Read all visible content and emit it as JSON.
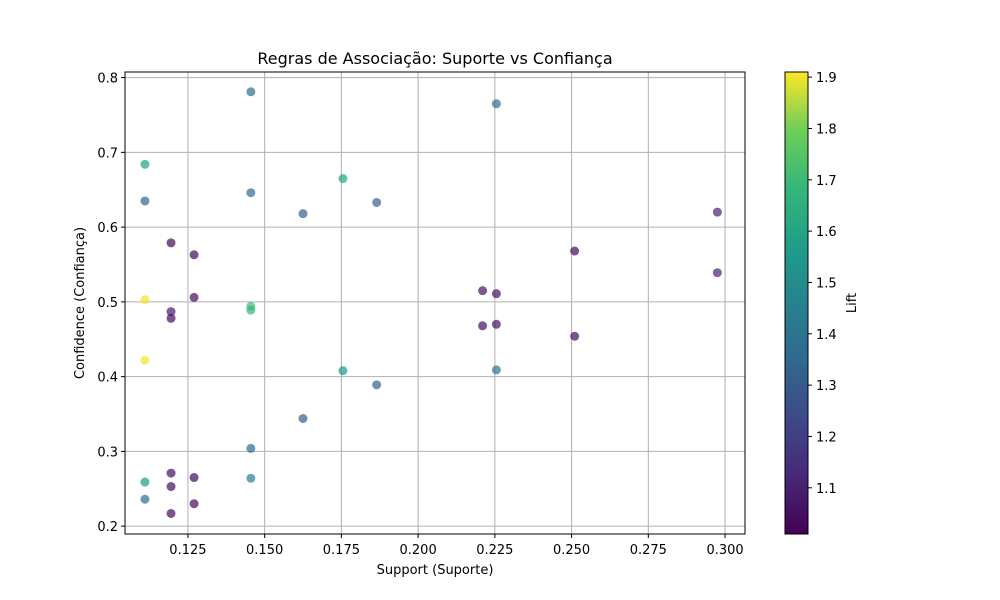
{
  "chart_data": {
    "type": "scatter",
    "title": "Regras de Associação: Suporte vs Confiança",
    "xlabel": "Support (Suporte)",
    "ylabel": "Confidence (Confiança)",
    "colorbar_label": "Lift",
    "xlim": [
      0.1045,
      0.3065
    ],
    "ylim": [
      0.1895,
      0.8075
    ],
    "xticks": [
      0.125,
      0.15,
      0.175,
      0.2,
      0.225,
      0.25,
      0.275,
      0.3
    ],
    "xtick_labels": [
      "0.125",
      "0.150",
      "0.175",
      "0.200",
      "0.225",
      "0.250",
      "0.275",
      "0.300"
    ],
    "yticks": [
      0.2,
      0.3,
      0.4,
      0.5,
      0.6,
      0.7,
      0.8
    ],
    "ytick_labels": [
      "0.2",
      "0.3",
      "0.4",
      "0.5",
      "0.6",
      "0.7",
      "0.8"
    ],
    "colorbar_range": [
      1.01,
      1.91
    ],
    "colorbar_ticks": [
      1.1,
      1.2,
      1.3,
      1.4,
      1.5,
      1.6,
      1.7,
      1.8,
      1.9
    ],
    "colorbar_tick_labels": [
      "1.1",
      "1.2",
      "1.3",
      "1.4",
      "1.5",
      "1.6",
      "1.7",
      "1.8",
      "1.9"
    ],
    "colormap": "viridis",
    "grid": true,
    "points": [
      {
        "x": 0.1455,
        "y": 0.781,
        "lift": 1.38
      },
      {
        "x": 0.2255,
        "y": 0.765,
        "lift": 1.38
      },
      {
        "x": 0.111,
        "y": 0.684,
        "lift": 1.58
      },
      {
        "x": 0.1755,
        "y": 0.665,
        "lift": 1.6
      },
      {
        "x": 0.1455,
        "y": 0.646,
        "lift": 1.35
      },
      {
        "x": 0.111,
        "y": 0.635,
        "lift": 1.33
      },
      {
        "x": 0.1865,
        "y": 0.633,
        "lift": 1.32
      },
      {
        "x": 0.1625,
        "y": 0.618,
        "lift": 1.31
      },
      {
        "x": 0.2975,
        "y": 0.62,
        "lift": 1.1
      },
      {
        "x": 0.1195,
        "y": 0.579,
        "lift": 1.03
      },
      {
        "x": 0.127,
        "y": 0.563,
        "lift": 1.03
      },
      {
        "x": 0.251,
        "y": 0.568,
        "lift": 1.04
      },
      {
        "x": 0.2975,
        "y": 0.539,
        "lift": 1.1
      },
      {
        "x": 0.221,
        "y": 0.515,
        "lift": 1.06
      },
      {
        "x": 0.2255,
        "y": 0.511,
        "lift": 1.06
      },
      {
        "x": 0.127,
        "y": 0.506,
        "lift": 1.04
      },
      {
        "x": 0.111,
        "y": 0.503,
        "lift": 1.9
      },
      {
        "x": 0.1455,
        "y": 0.494,
        "lift": 1.7
      },
      {
        "x": 0.1455,
        "y": 0.489,
        "lift": 1.68
      },
      {
        "x": 0.1195,
        "y": 0.487,
        "lift": 1.08
      },
      {
        "x": 0.1195,
        "y": 0.478,
        "lift": 1.04
      },
      {
        "x": 0.221,
        "y": 0.468,
        "lift": 1.05
      },
      {
        "x": 0.2255,
        "y": 0.47,
        "lift": 1.05
      },
      {
        "x": 0.251,
        "y": 0.454,
        "lift": 1.04
      },
      {
        "x": 0.111,
        "y": 0.422,
        "lift": 1.9
      },
      {
        "x": 0.1755,
        "y": 0.408,
        "lift": 1.55
      },
      {
        "x": 0.2255,
        "y": 0.409,
        "lift": 1.4
      },
      {
        "x": 0.1865,
        "y": 0.389,
        "lift": 1.32
      },
      {
        "x": 0.1625,
        "y": 0.344,
        "lift": 1.31
      },
      {
        "x": 0.1455,
        "y": 0.304,
        "lift": 1.35
      },
      {
        "x": 0.1195,
        "y": 0.271,
        "lift": 1.04
      },
      {
        "x": 0.127,
        "y": 0.265,
        "lift": 1.03
      },
      {
        "x": 0.1455,
        "y": 0.264,
        "lift": 1.45
      },
      {
        "x": 0.111,
        "y": 0.259,
        "lift": 1.55
      },
      {
        "x": 0.1195,
        "y": 0.253,
        "lift": 1.04
      },
      {
        "x": 0.111,
        "y": 0.236,
        "lift": 1.35
      },
      {
        "x": 0.127,
        "y": 0.23,
        "lift": 1.03
      },
      {
        "x": 0.1195,
        "y": 0.217,
        "lift": 1.04
      }
    ]
  }
}
